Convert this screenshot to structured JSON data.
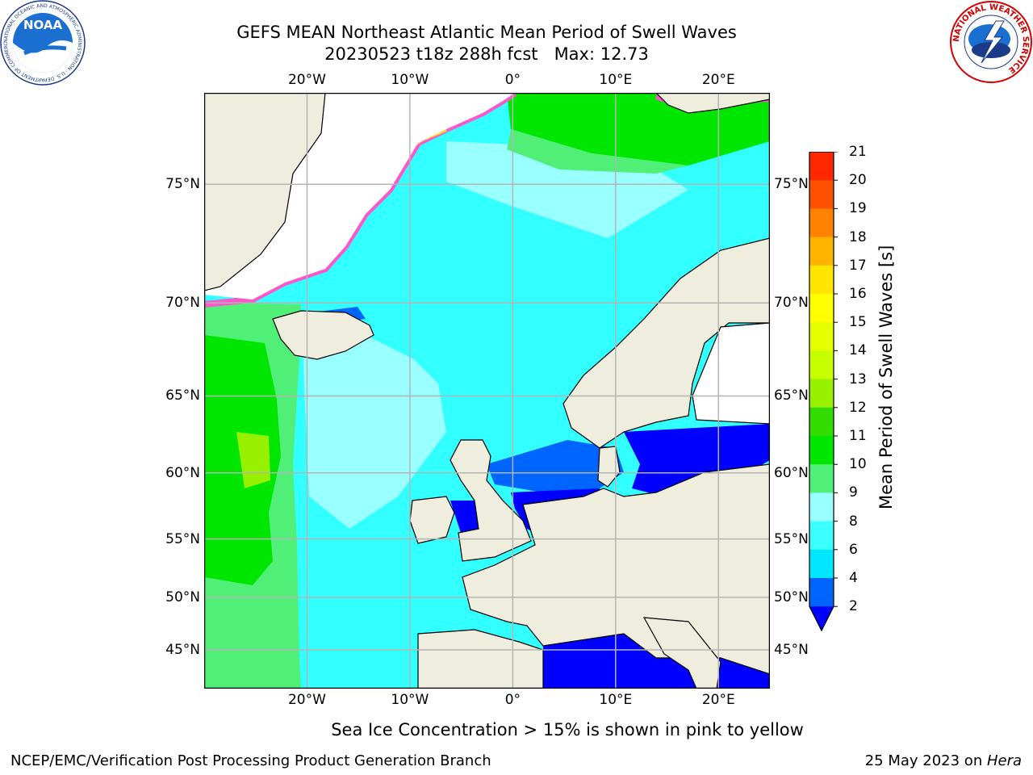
{
  "title": {
    "line1": "GEFS MEAN Northeast Atlantic Mean Period of Swell Waves",
    "line2": "20230523 t18z 288h fcst   Max: 12.73"
  },
  "map": {
    "lon_range": [
      -30,
      25
    ],
    "lat_range": [
      41,
      78
    ],
    "projection": "mercator",
    "gridlines": true,
    "lon_ticks": [
      {
        "value": -20,
        "label": "20°W"
      },
      {
        "value": -10,
        "label": "10°W"
      },
      {
        "value": 0,
        "label": "0°"
      },
      {
        "value": 10,
        "label": "10°E"
      },
      {
        "value": 20,
        "label": "20°E"
      }
    ],
    "lat_ticks": [
      {
        "value": 75,
        "label": "75°N"
      },
      {
        "value": 70,
        "label": "70°N"
      },
      {
        "value": 65,
        "label": "65°N"
      },
      {
        "value": 60,
        "label": "60°N"
      },
      {
        "value": 55,
        "label": "55°N"
      },
      {
        "value": 50,
        "label": "50°N"
      },
      {
        "value": 45,
        "label": "45°N"
      }
    ],
    "colors": {
      "land": "#efedde",
      "ice_free_white": "#ffffff",
      "ocean_base": "#32ffff",
      "coast": "#000000",
      "grid": "#b4b4b4"
    }
  },
  "colorbar": {
    "title": "Mean Period of Swell Waves [s]",
    "levels": [
      2,
      4,
      6,
      8,
      9,
      10,
      11,
      12,
      13,
      14,
      15,
      16,
      17,
      18,
      19,
      20,
      21
    ],
    "colors": [
      "#0064ff",
      "#00e6ff",
      "#3cffff",
      "#9affff",
      "#50f078",
      "#00e600",
      "#32dc00",
      "#96f000",
      "#c8ff00",
      "#e6ff00",
      "#ffff00",
      "#ffe600",
      "#ffb400",
      "#ff8200",
      "#ff5000",
      "#ff2800"
    ],
    "under_color": "#0000ff",
    "labels": [
      "2",
      "4",
      "6",
      "8",
      "9",
      "10",
      "11",
      "12",
      "13",
      "14",
      "15",
      "16",
      "17",
      "18",
      "19",
      "20",
      "21"
    ]
  },
  "note": "Sea Ice Concentration > 15% is shown in pink to yellow",
  "footer": {
    "left": "NCEP/EMC/Verification Post Processing Product Generation Branch",
    "date": "25 May 2023 on ",
    "host": "Hera"
  },
  "logos": {
    "noaa_text": "NOAA",
    "noaa_ring": "NATIONAL OCEANIC AND ATMOSPHERIC ADMINISTRATION · U.S. DEPARTMENT OF COMMERCE",
    "nws_ring": "NATIONAL WEATHER SERVICE"
  }
}
